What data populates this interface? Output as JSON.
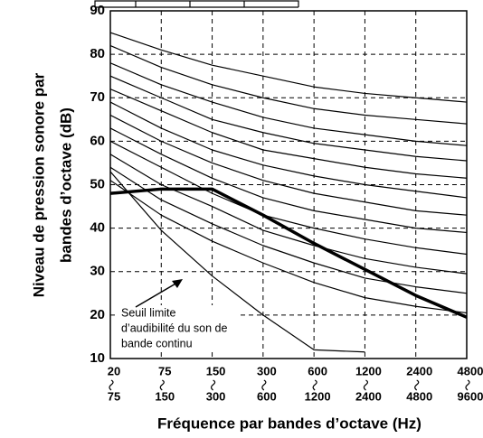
{
  "chart_data": {
    "type": "line",
    "y_axis_title": [
      "Niveau de pression sonore par",
      "bandes d’octave (dB)"
    ],
    "x_axis_title": "Fréquence par bandes d’octave (Hz)",
    "categories": [
      [
        "20",
        "75"
      ],
      [
        "75",
        "150"
      ],
      [
        "150",
        "300"
      ],
      [
        "300",
        "600"
      ],
      [
        "600",
        "1200"
      ],
      [
        "1200",
        "2400"
      ],
      [
        "2400",
        "4800"
      ],
      [
        "4800",
        "9600"
      ]
    ],
    "ylim": [
      10,
      90
    ],
    "yticks": [
      10,
      20,
      30,
      40,
      50,
      60,
      70,
      80,
      90
    ],
    "grid": true,
    "series": [
      {
        "color": "#000000",
        "line_width": 1.2,
        "values": [
          85,
          81,
          77.5,
          75,
          72.5,
          71,
          70,
          69
        ]
      },
      {
        "color": "#000000",
        "line_width": 1.2,
        "values": [
          82,
          77,
          73,
          70,
          67.5,
          66,
          65,
          64
        ]
      },
      {
        "color": "#000000",
        "line_width": 1.2,
        "values": [
          78,
          73,
          69,
          65.5,
          63,
          61.5,
          60,
          59
        ]
      },
      {
        "color": "#000000",
        "line_width": 1.2,
        "values": [
          75,
          70,
          65,
          62,
          59.5,
          58,
          56.5,
          55.5
        ]
      },
      {
        "color": "#000000",
        "line_width": 1.2,
        "values": [
          72,
          67,
          62,
          58,
          56,
          54,
          52.5,
          51.5
        ]
      },
      {
        "color": "#000000",
        "line_width": 1.2,
        "values": [
          69,
          63,
          58,
          54.5,
          52,
          50,
          48.5,
          47
        ]
      },
      {
        "color": "#000000",
        "line_width": 1.2,
        "values": [
          66,
          60,
          55,
          51,
          48,
          46,
          44,
          43
        ]
      },
      {
        "color": "#000000",
        "line_width": 1.2,
        "values": [
          63,
          57,
          51.5,
          47,
          44,
          42,
          40,
          39
        ]
      },
      {
        "color": "#000000",
        "line_width": 1.2,
        "values": [
          60,
          54,
          48,
          43,
          40,
          37.5,
          35.5,
          34
        ]
      },
      {
        "color": "#000000",
        "line_width": 1.2,
        "values": [
          57,
          50,
          45,
          39.5,
          36,
          33,
          31,
          29.5
        ]
      },
      {
        "color": "#000000",
        "line_width": 1.2,
        "values": [
          54,
          46.5,
          41,
          36,
          32,
          28.5,
          26.5,
          25
        ]
      },
      {
        "color": "#000000",
        "line_width": 1.2,
        "values": [
          51,
          43,
          37,
          32,
          27.5,
          24,
          22,
          20.5
        ]
      },
      {
        "color": "#000000",
        "line_width": 1.2,
        "values": [
          53,
          39.5,
          29,
          20,
          12,
          11.5,
          null,
          null
        ]
      },
      {
        "color": "#000000",
        "line_width": 3.5,
        "values": [
          48,
          49,
          49,
          43,
          36.5,
          30.5,
          24.5,
          19.5
        ]
      }
    ],
    "annotation": [
      "Seuil limite",
      "d’audibilité du son de",
      "bande continu"
    ]
  }
}
